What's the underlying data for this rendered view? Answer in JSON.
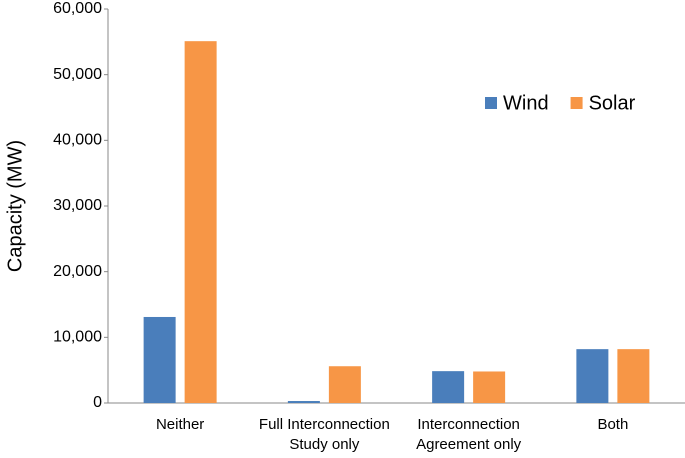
{
  "chart_data": {
    "type": "bar",
    "y_label": "Capacity (MW)",
    "categories": [
      "Neither",
      "Full Interconnection\nStudy only",
      "Interconnection\nAgreement only",
      "Both"
    ],
    "series": [
      {
        "name": "Wind",
        "color": "#4a7ebb",
        "values": [
          13100,
          300,
          4850,
          8200
        ]
      },
      {
        "name": "Solar",
        "color": "#f79646",
        "values": [
          55100,
          5600,
          4800,
          8200
        ]
      }
    ],
    "ylim": [
      0,
      60000
    ],
    "yticks": [
      0,
      {
        "value": 10000,
        "label": "10,000"
      },
      {
        "value": 20000,
        "label": "20,000"
      },
      {
        "value": 30000,
        "label": "30,000"
      },
      {
        "value": 40000,
        "label": "40,000"
      },
      {
        "value": 50000,
        "label": "50,000"
      },
      {
        "value": 60000,
        "label": "60,000"
      }
    ],
    "grid": false,
    "legend": "upper-right"
  }
}
